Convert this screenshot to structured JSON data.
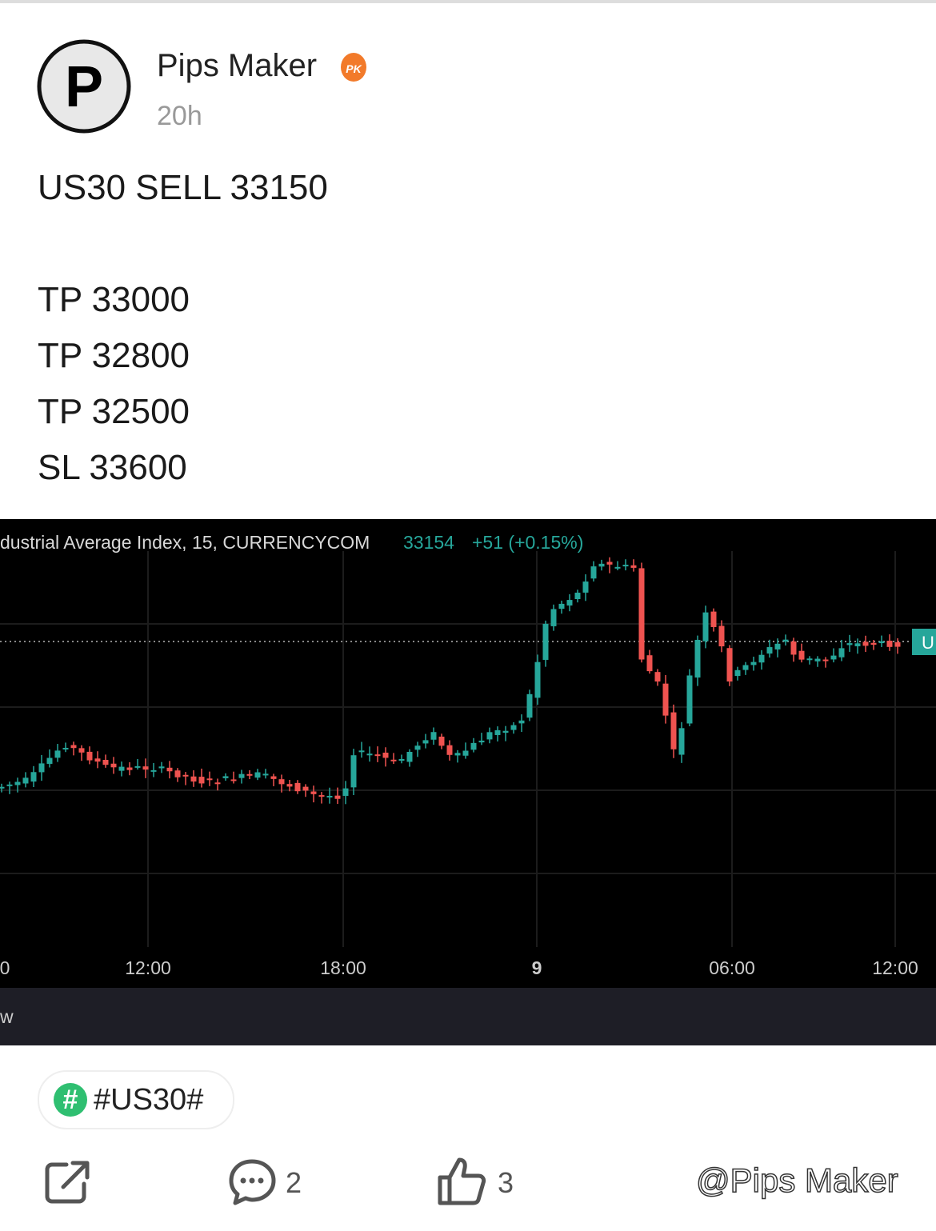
{
  "post": {
    "author": "Pips Maker",
    "badge": "PK",
    "time": "20h",
    "lines": [
      "US30 SELL 33150",
      "TP 33000",
      "TP 32800",
      "TP 32500",
      "SL 33600"
    ]
  },
  "chart": {
    "header": "dustrial Average Index, 15, CURRENCYCOM",
    "price": 33154,
    "change": "+51 (+0.15%)",
    "price_tag": "U",
    "xlabels": [
      "0",
      "12:00",
      "18:00",
      "9",
      "06:00",
      "12:00"
    ],
    "footer": "w"
  },
  "tag": "#US30#",
  "actions": {
    "comments": 2,
    "likes": 3
  },
  "watermark": "@Pips Maker"
}
